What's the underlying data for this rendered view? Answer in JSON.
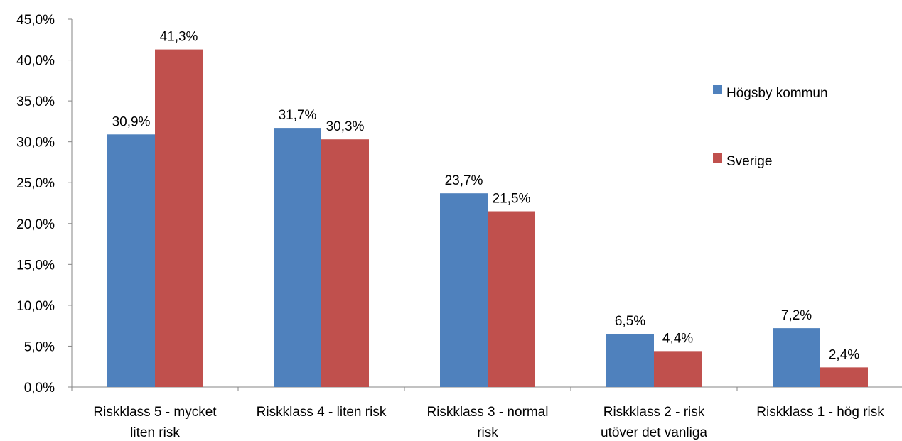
{
  "chart_data": {
    "type": "bar",
    "title": "",
    "xlabel": "",
    "ylabel": "",
    "ylim": [
      0,
      45
    ],
    "ytick_step": 5,
    "ytick_labels": [
      "0,0%",
      "5,0%",
      "10,0%",
      "15,0%",
      "20,0%",
      "25,0%",
      "30,0%",
      "35,0%",
      "40,0%",
      "45,0%"
    ],
    "grid": false,
    "legend_position": "right",
    "categories": [
      [
        "Riskklass 5 - mycket",
        "liten risk"
      ],
      [
        "Riskklass 4 - liten risk"
      ],
      [
        "Riskklass 3 - normal",
        "risk"
      ],
      [
        "Riskklass 2 - risk",
        "utöver det vanliga"
      ],
      [
        "Riskklass 1 - hög risk"
      ]
    ],
    "series": [
      {
        "name": "Högsby kommun",
        "color": "#4f81bd",
        "values": [
          30.9,
          31.7,
          23.7,
          6.5,
          7.2
        ],
        "labels": [
          "30,9%",
          "31,7%",
          "23,7%",
          "6,5%",
          "7,2%"
        ]
      },
      {
        "name": "Sverige",
        "color": "#c0504d",
        "values": [
          41.3,
          30.3,
          21.5,
          4.4,
          2.4
        ],
        "labels": [
          "41,3%",
          "30,3%",
          "21,5%",
          "4,4%",
          "2,4%"
        ]
      }
    ]
  }
}
